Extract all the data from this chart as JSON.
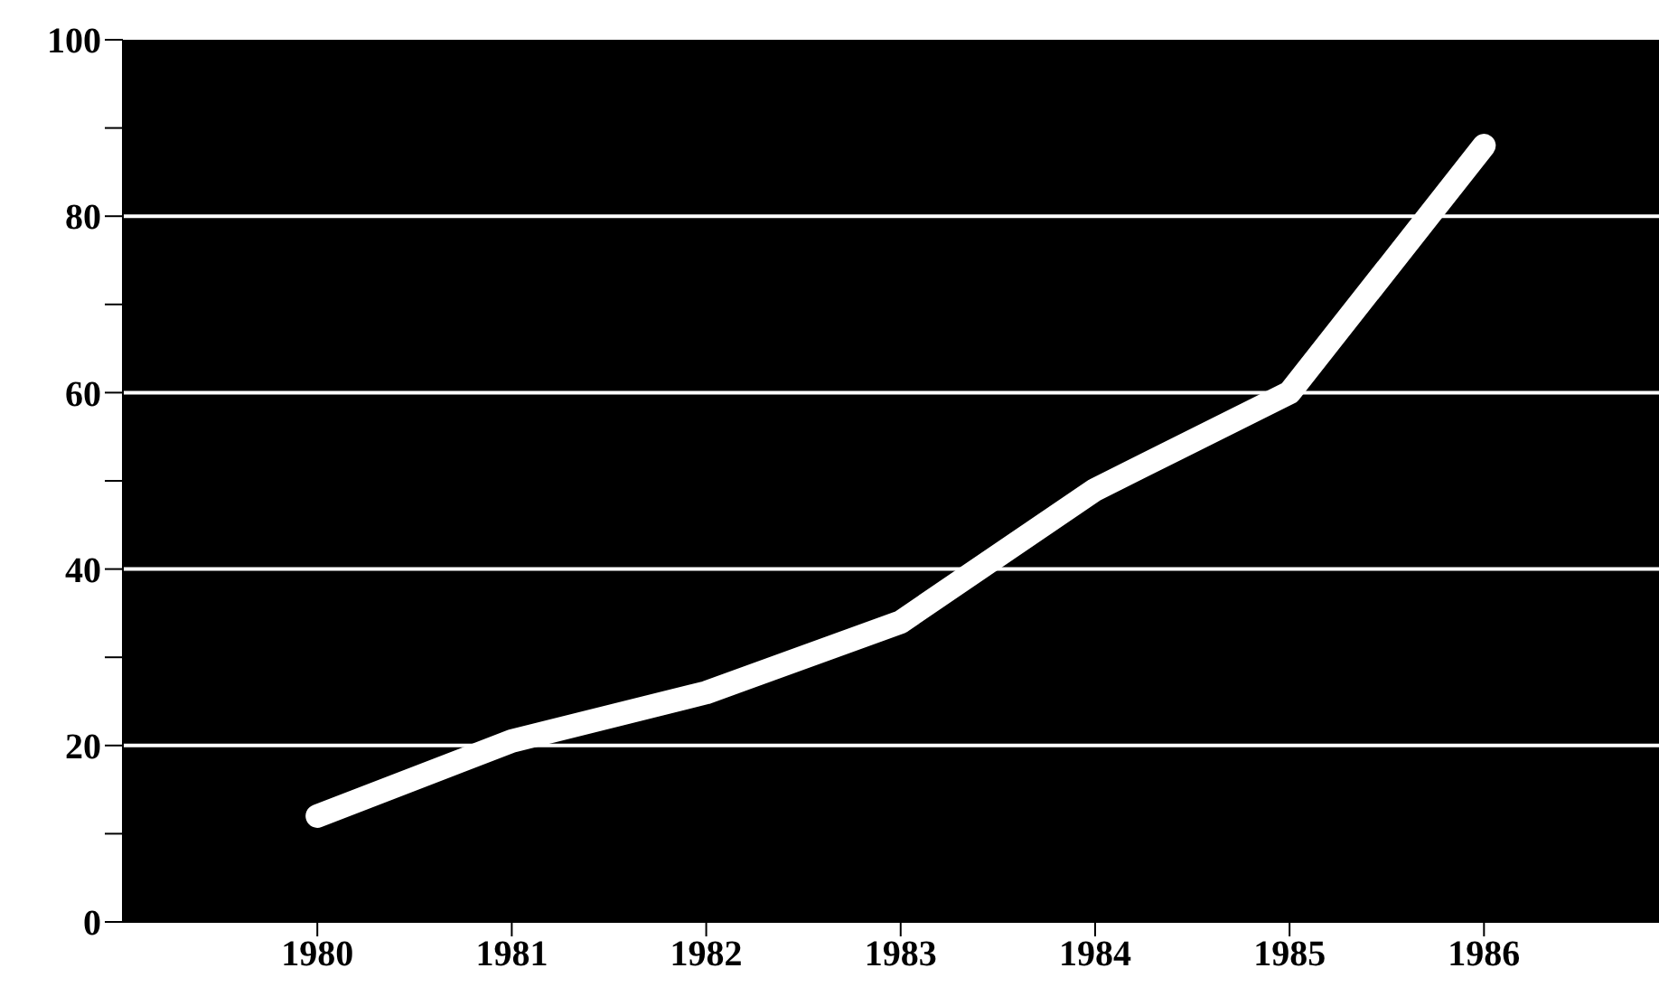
{
  "chart_data": {
    "type": "line",
    "x": [
      1980,
      1981,
      1982,
      1983,
      1984,
      1985,
      1986
    ],
    "series": [
      {
        "color": "#ffffff",
        "values": [
          12,
          20.5,
          26,
          34,
          49,
          60,
          88
        ]
      }
    ],
    "xlim": [
      1979,
      1986.9
    ],
    "xticks": [
      1980,
      1981,
      1982,
      1983,
      1984,
      1985,
      1986
    ],
    "ylim": [
      0,
      100
    ],
    "yticks": [
      0,
      {
        "value": 10,
        "label": null
      },
      20,
      {
        "value": 30,
        "label": null
      },
      40,
      {
        "value": 50,
        "label": null
      },
      60,
      {
        "value": 70,
        "label": null
      },
      80,
      {
        "value": 90,
        "label": null
      },
      100
    ],
    "grid": "y",
    "marker": "none",
    "line_style": "solid"
  }
}
